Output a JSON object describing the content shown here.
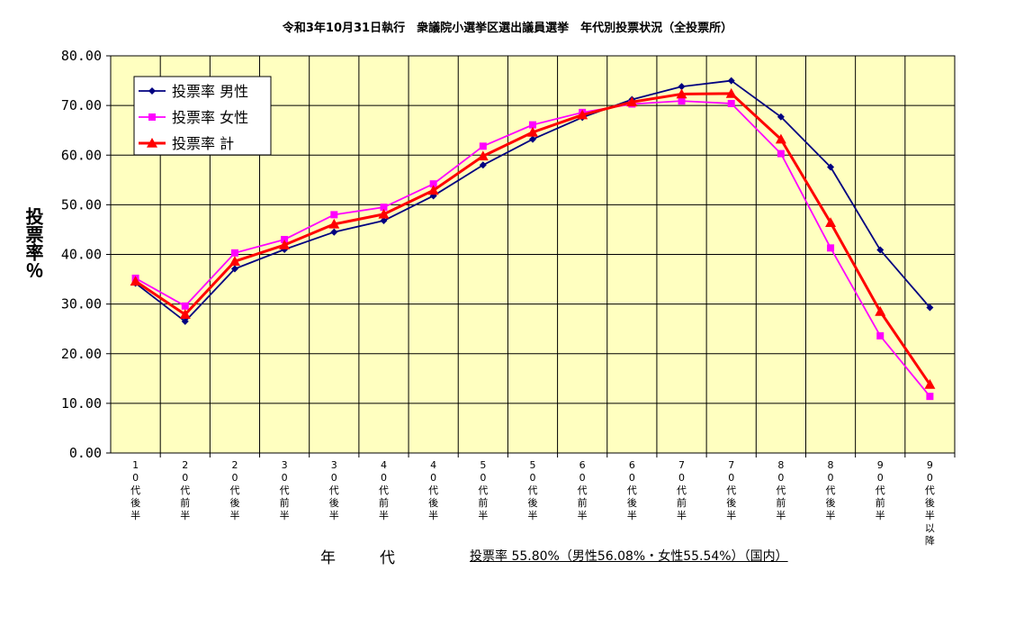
{
  "chart_data": {
    "type": "line",
    "title": "令和3年10月31日執行　衆議院小選挙区選出議員選挙　年代別投票状況（全投票所）",
    "ylabel": "投票率％",
    "xlabel": "年　代",
    "summary": "投票率 55.80%（男性56.08%・女性55.54%）（国内）",
    "ylim": [
      0,
      80
    ],
    "yticks": [
      "0.00",
      "10.00",
      "20.00",
      "30.00",
      "40.00",
      "50.00",
      "60.00",
      "70.00",
      "80.00"
    ],
    "grid": true,
    "legend_position": "top-left",
    "categories": [
      "10代後半",
      "20代前半",
      "20代後半",
      "30代前半",
      "30代後半",
      "40代前半",
      "40代後半",
      "50代前半",
      "50代後半",
      "60代前半",
      "60代後半",
      "70代前半",
      "70代後半",
      "80代前半",
      "80代後半",
      "90代前半",
      "90代後半以降"
    ],
    "series": [
      {
        "name": "投票率 男性",
        "color": "#000080",
        "marker": "diamond",
        "values": [
          34.2,
          26.5,
          37.1,
          41.0,
          44.5,
          46.8,
          51.8,
          58.0,
          63.2,
          67.6,
          71.2,
          73.8,
          75.0,
          67.7,
          57.6,
          40.9,
          29.3
        ]
      },
      {
        "name": "投票率 女性",
        "color": "#ff00ff",
        "marker": "square",
        "values": [
          35.2,
          29.6,
          40.3,
          43.0,
          48.0,
          49.5,
          54.2,
          61.8,
          66.1,
          68.6,
          70.3,
          70.9,
          70.4,
          60.3,
          41.3,
          23.6,
          11.4
        ]
      },
      {
        "name": "投票率 計",
        "color": "#ff0000",
        "marker": "triangle",
        "values": [
          34.6,
          27.9,
          38.6,
          41.9,
          46.1,
          48.1,
          52.9,
          59.8,
          64.6,
          68.1,
          70.7,
          72.3,
          72.4,
          63.2,
          46.4,
          28.5,
          13.8
        ]
      }
    ]
  }
}
